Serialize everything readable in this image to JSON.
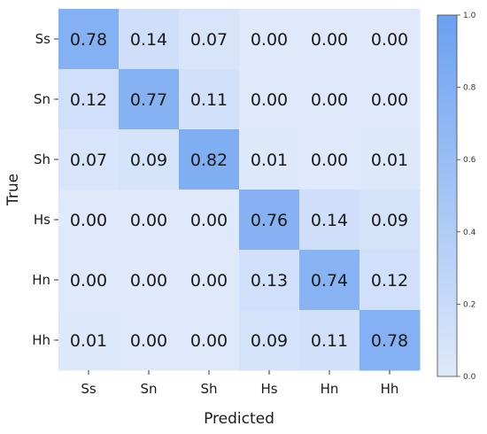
{
  "chart_data": {
    "type": "heatmap",
    "title": "",
    "xlabel": "Predicted",
    "ylabel": "True",
    "x_categories": [
      "Ss",
      "Sn",
      "Sh",
      "Hs",
      "Hn",
      "Hh"
    ],
    "y_categories": [
      "Ss",
      "Sn",
      "Sh",
      "Hs",
      "Hn",
      "Hh"
    ],
    "values": [
      [
        0.78,
        0.14,
        0.07,
        0.0,
        0.0,
        0.0
      ],
      [
        0.12,
        0.77,
        0.11,
        0.0,
        0.0,
        0.0
      ],
      [
        0.07,
        0.09,
        0.82,
        0.01,
        0.0,
        0.01
      ],
      [
        0.0,
        0.0,
        0.0,
        0.76,
        0.14,
        0.09
      ],
      [
        0.0,
        0.0,
        0.0,
        0.13,
        0.74,
        0.12
      ],
      [
        0.01,
        0.0,
        0.0,
        0.09,
        0.11,
        0.78
      ]
    ],
    "value_format": "0.00",
    "colorbar": {
      "min": 0.0,
      "max": 1.0,
      "ticks": [
        0.0,
        0.2,
        0.4,
        0.6,
        0.8,
        1.0
      ],
      "tick_labels": [
        "0.0",
        "0.2",
        "0.4",
        "0.6",
        "0.8",
        "1.0"
      ],
      "placement": "right"
    },
    "colors": {
      "low": "#dfe9fb",
      "high": "#6aa1f1"
    }
  }
}
